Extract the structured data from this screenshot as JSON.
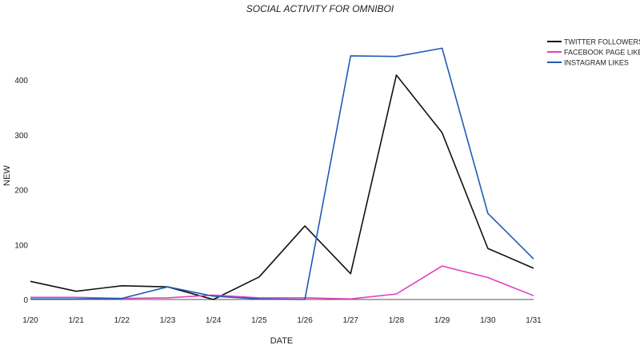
{
  "chart_data": {
    "type": "line",
    "title": "SOCIAL ACTIVITY FOR OMNIBOI",
    "xlabel": "DATE",
    "ylabel": "NEW",
    "categories": [
      "1/20",
      "1/21",
      "1/22",
      "1/23",
      "1/24",
      "1/25",
      "1/26",
      "1/27",
      "1/28",
      "1/29",
      "1/30",
      "1/31"
    ],
    "yticks": [
      0,
      100,
      200,
      300,
      400
    ],
    "ylim": [
      -5,
      470
    ],
    "grid": false,
    "legend_position": "top-right",
    "series": [
      {
        "name": "TWITTER FOLLOWERS",
        "color": "#111111",
        "values": [
          33,
          15,
          25,
          23,
          0,
          41,
          134,
          47,
          409,
          304,
          93,
          57
        ]
      },
      {
        "name": "FACEBOOK PAGE LIKES",
        "color": "#e040c0",
        "values": [
          4,
          4,
          2,
          3,
          8,
          3,
          3,
          1,
          10,
          61,
          40,
          7
        ]
      },
      {
        "name": "INSTAGRAM LIKES",
        "color": "#1f5bb5",
        "values": [
          1,
          1,
          2,
          23,
          6,
          1,
          0,
          444,
          443,
          458,
          157,
          74
        ]
      }
    ]
  }
}
